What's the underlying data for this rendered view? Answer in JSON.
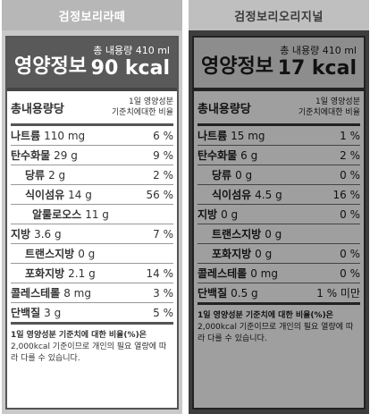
{
  "left": {
    "product_name": "검정보리라떼",
    "header": {
      "title": "영양정보",
      "total": "총 내용량 410 ml",
      "kcal": "90 kcal"
    },
    "colhead": {
      "left": "총내용량당",
      "right1": "1일 영양성분",
      "right2": "기준치에대한 비율"
    },
    "rows": [
      {
        "name": "나트륨",
        "amount": "110 mg",
        "pct": "6 %"
      },
      {
        "name": "탄수화물",
        "amount": "29 g",
        "pct": "9 %"
      },
      {
        "name": "당류",
        "amount": "2 g",
        "pct": "2 %"
      },
      {
        "name": "식이섬유",
        "amount": "14 g",
        "pct": "56 %"
      },
      {
        "name": "알룰로오스",
        "amount": "11 g",
        "pct": ""
      },
      {
        "name": "지방",
        "amount": "3.6 g",
        "pct": "7 %"
      },
      {
        "name": "트랜스지방",
        "amount": "0 g",
        "pct": ""
      },
      {
        "name": "포화지방",
        "amount": "2.1 g",
        "pct": "14 %"
      },
      {
        "name": "콜레스테롤",
        "amount": "8 mg",
        "pct": "3 %"
      },
      {
        "name": "단백질",
        "amount": "3 g",
        "pct": "5 %"
      }
    ],
    "footer": {
      "bold": "1일 영양성분 기준치에 대한 비율(%)은",
      "text": "2,000kcal 기준이므로 개인의 필요 열량에 따라 다를 수 있습니다."
    }
  },
  "right": {
    "product_name": "검정보리오리지널",
    "header": {
      "title": "영양정보",
      "total": "총 내용량 410 ml",
      "kcal": "17 kcal"
    },
    "colhead": {
      "left": "총내용량당",
      "right1": "1일 영양성분",
      "right2": "기준치에대한 비율"
    },
    "rows": [
      {
        "name": "나트륨",
        "amount": "15 mg",
        "pct": "1 %"
      },
      {
        "name": "탄수화물",
        "amount": "6 g",
        "pct": "2 %"
      },
      {
        "name": "당류",
        "amount": "0 g",
        "pct": "0 %"
      },
      {
        "name": "식이섬유",
        "amount": "4.5 g",
        "pct": "16 %"
      },
      {
        "name": "지방",
        "amount": "0 g",
        "pct": "0 %"
      },
      {
        "name": "트랜스지방",
        "amount": "0 g",
        "pct": ""
      },
      {
        "name": "포화지방",
        "amount": "0 g",
        "pct": "0 %"
      },
      {
        "name": "콜레스테롤",
        "amount": "0 mg",
        "pct": "0 %"
      },
      {
        "name": "단백질",
        "amount": "0.5 g",
        "pct": "1 % 미만"
      }
    ],
    "footer": {
      "bold": "1일 영양성분 기준치에 대한 비율(%)은",
      "text": "2,000kcal 기준이므로 개인의 필요 열량에 따라 다를 수 있습니다."
    }
  }
}
